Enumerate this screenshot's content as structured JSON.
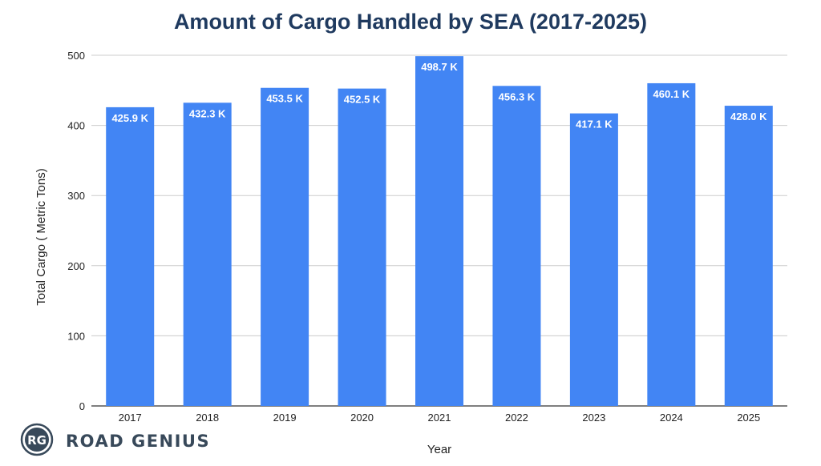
{
  "chart_data": {
    "type": "bar",
    "title": "Amount of Cargo Handled by SEA (2017-2025)",
    "xlabel": "Year",
    "ylabel": "Total Cargo ( Metric Tons)",
    "categories": [
      "2017",
      "2018",
      "2019",
      "2020",
      "2021",
      "2022",
      "2023",
      "2024",
      "2025"
    ],
    "values": [
      425.9,
      432.3,
      453.5,
      452.5,
      498.7,
      456.3,
      417.1,
      460.1,
      428.0
    ],
    "value_labels": [
      "425.9 K",
      "432.3 K",
      "453.5 K",
      "452.5 K",
      "498.7 K",
      "456.3 K",
      "417.1 K",
      "460.1 K",
      "428.0 K"
    ],
    "ylim": [
      0,
      500
    ],
    "yticks": [
      "0",
      "100",
      "200",
      "300",
      "400",
      "500"
    ],
    "grid": true,
    "legend": "none",
    "bar_color": "#4285f4"
  },
  "brand": {
    "monogram": "RG",
    "name": "ROAD GENIUS",
    "color": "#38495a"
  }
}
